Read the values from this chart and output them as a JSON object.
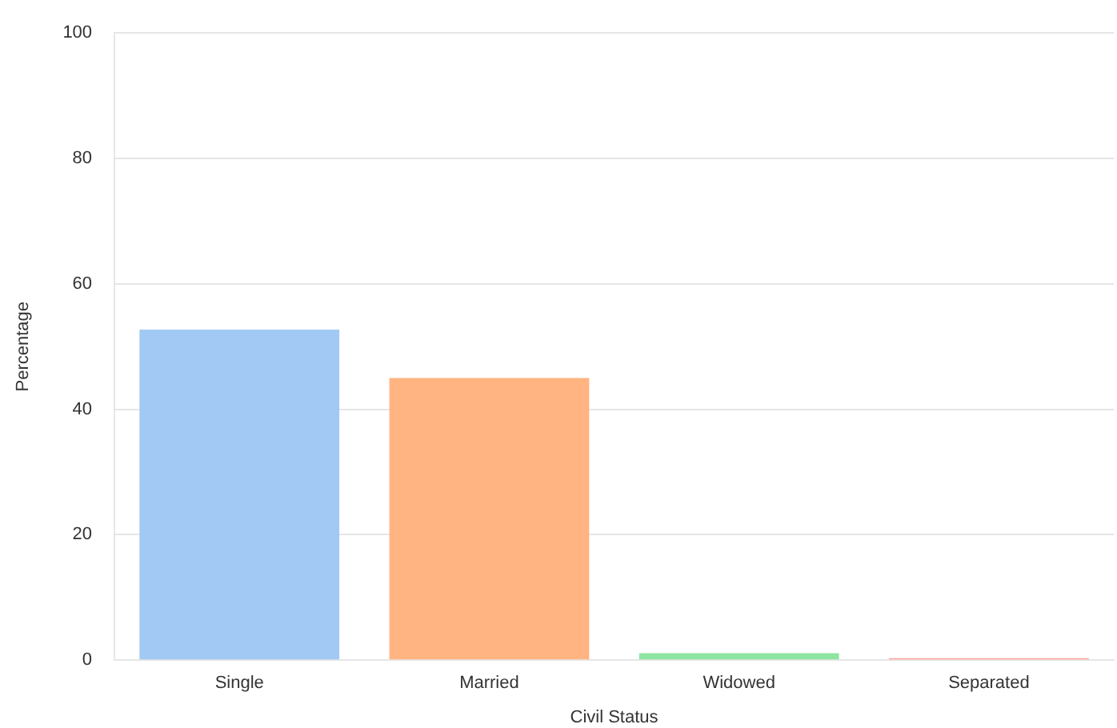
{
  "chart_data": {
    "type": "bar",
    "xlabel": "Civil Status",
    "ylabel": "Percentage",
    "categories": [
      "Single",
      "Married",
      "Widowed",
      "Separated"
    ],
    "values": [
      52.7,
      45,
      1.1,
      0.3
    ],
    "colors": [
      "#a1c9f4",
      "#ffb482",
      "#8de5a1",
      "#ff9f9b"
    ],
    "ylim": [
      0,
      100
    ],
    "yticks": [
      0,
      20,
      40,
      60,
      80,
      100
    ],
    "grid": "y"
  }
}
